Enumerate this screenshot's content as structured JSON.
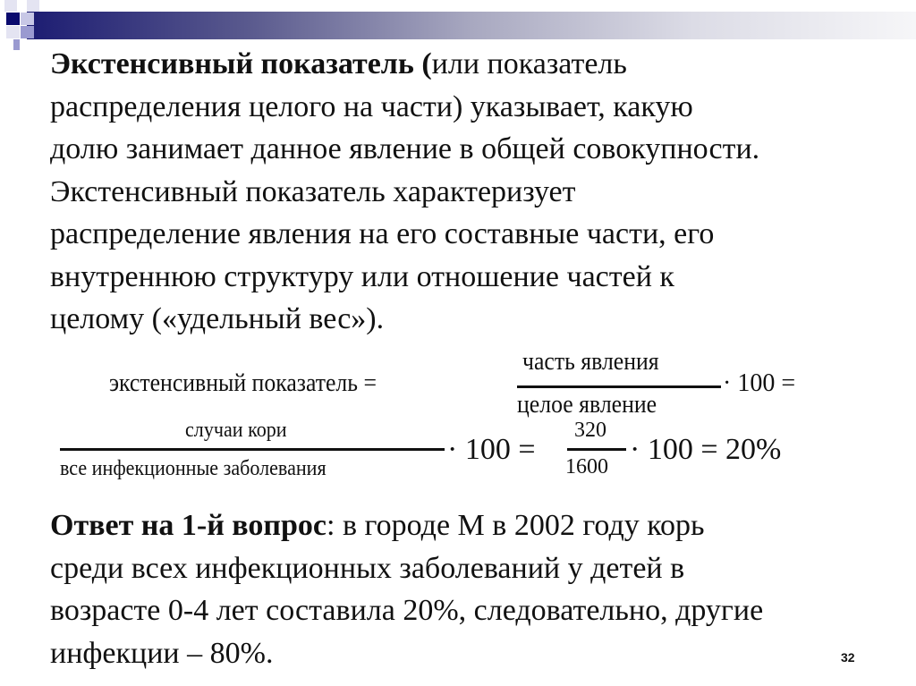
{
  "header": {
    "accent": "#1c1c72"
  },
  "para1": {
    "bold_lead": "Экстенсивный показатель (",
    "line1_rest": "или показатель",
    "lines": [
      "распределения целого на части) указывает, какую",
      "долю занимает данное явление в общей совокупности.",
      "Экстенсивный показатель характеризует",
      "распределение явления на его составные части, его",
      "внутреннюю структуру или отношение частей к",
      "целому («удельный вес»)."
    ]
  },
  "formula": {
    "lhs": "экстенсивный показатель =",
    "num1": "часть явления",
    "den1": "целое явление",
    "tail1": "· 100 =",
    "num2": "случаи кори",
    "den2": "все инфекционные заболевания",
    "mid2": "· 100 =",
    "num3": "320",
    "den3": "1600",
    "tail3": "· 100 = 20%"
  },
  "answer": {
    "bold_lead": "Ответ на 1-й вопрос",
    "line1_rest": ": в городе М в 2002 году корь",
    "lines": [
      "среди всех инфекционных заболеваний у детей в",
      "возрасте 0-4 лет составила 20%, следовательно, другие",
      "инфекции – 80%."
    ]
  },
  "page_number": "32"
}
